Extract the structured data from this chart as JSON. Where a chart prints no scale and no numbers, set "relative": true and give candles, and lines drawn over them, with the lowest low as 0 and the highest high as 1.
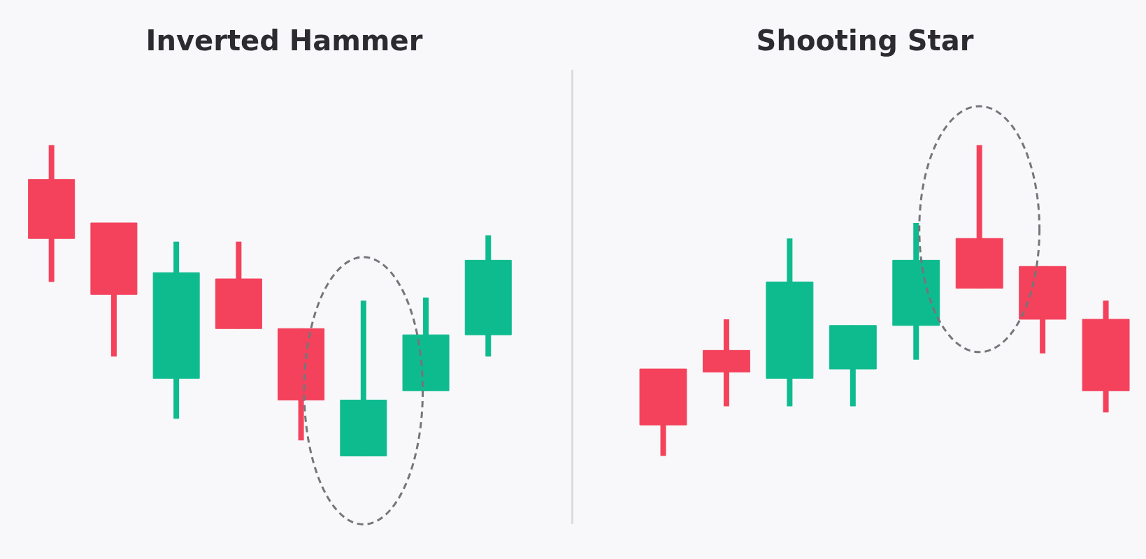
{
  "chart_data": [
    {
      "type": "candlestick",
      "title": "Inverted Hammer",
      "relative": true,
      "categories": [
        null,
        null,
        null,
        null,
        null,
        null,
        null,
        null
      ],
      "ohlc": [
        [
          0.89,
          1.0,
          0.56,
          0.7
        ],
        [
          0.75,
          0.75,
          0.32,
          0.52
        ],
        [
          0.25,
          0.69,
          0.12,
          0.59
        ],
        [
          0.57,
          0.69,
          0.41,
          0.41
        ],
        [
          0.41,
          0.41,
          0.05,
          0.18
        ],
        [
          0.0,
          0.5,
          0.0,
          0.18
        ],
        [
          0.21,
          0.51,
          0.21,
          0.39
        ],
        [
          0.39,
          0.71,
          0.32,
          0.63
        ]
      ],
      "colors": [
        "#f4425c",
        "#f4425c",
        "#0ebb8f",
        "#f4425c",
        "#f4425c",
        "#0ebb8f",
        "#0ebb8f",
        "#0ebb8f"
      ]
    },
    {
      "type": "candlestick",
      "title": "Shooting Star",
      "relative": true,
      "categories": [
        null,
        null,
        null,
        null,
        null,
        null,
        null,
        null
      ],
      "ohlc": [
        [
          0.28,
          0.28,
          0.0,
          0.1
        ],
        [
          0.34,
          0.44,
          0.16,
          0.27
        ],
        [
          0.25,
          0.7,
          0.16,
          0.56
        ],
        [
          0.28,
          0.42,
          0.16,
          0.42
        ],
        [
          0.42,
          0.75,
          0.31,
          0.63
        ],
        [
          0.7,
          1.0,
          0.54,
          0.54
        ],
        [
          0.61,
          0.61,
          0.33,
          0.44
        ],
        [
          0.44,
          0.5,
          0.14,
          0.21
        ]
      ],
      "colors": [
        "#f4425c",
        "#f4425c",
        "#0ebb8f",
        "#0ebb8f",
        "#0ebb8f",
        "#f4425c",
        "#f4425c",
        "#f4425c"
      ]
    }
  ]
}
